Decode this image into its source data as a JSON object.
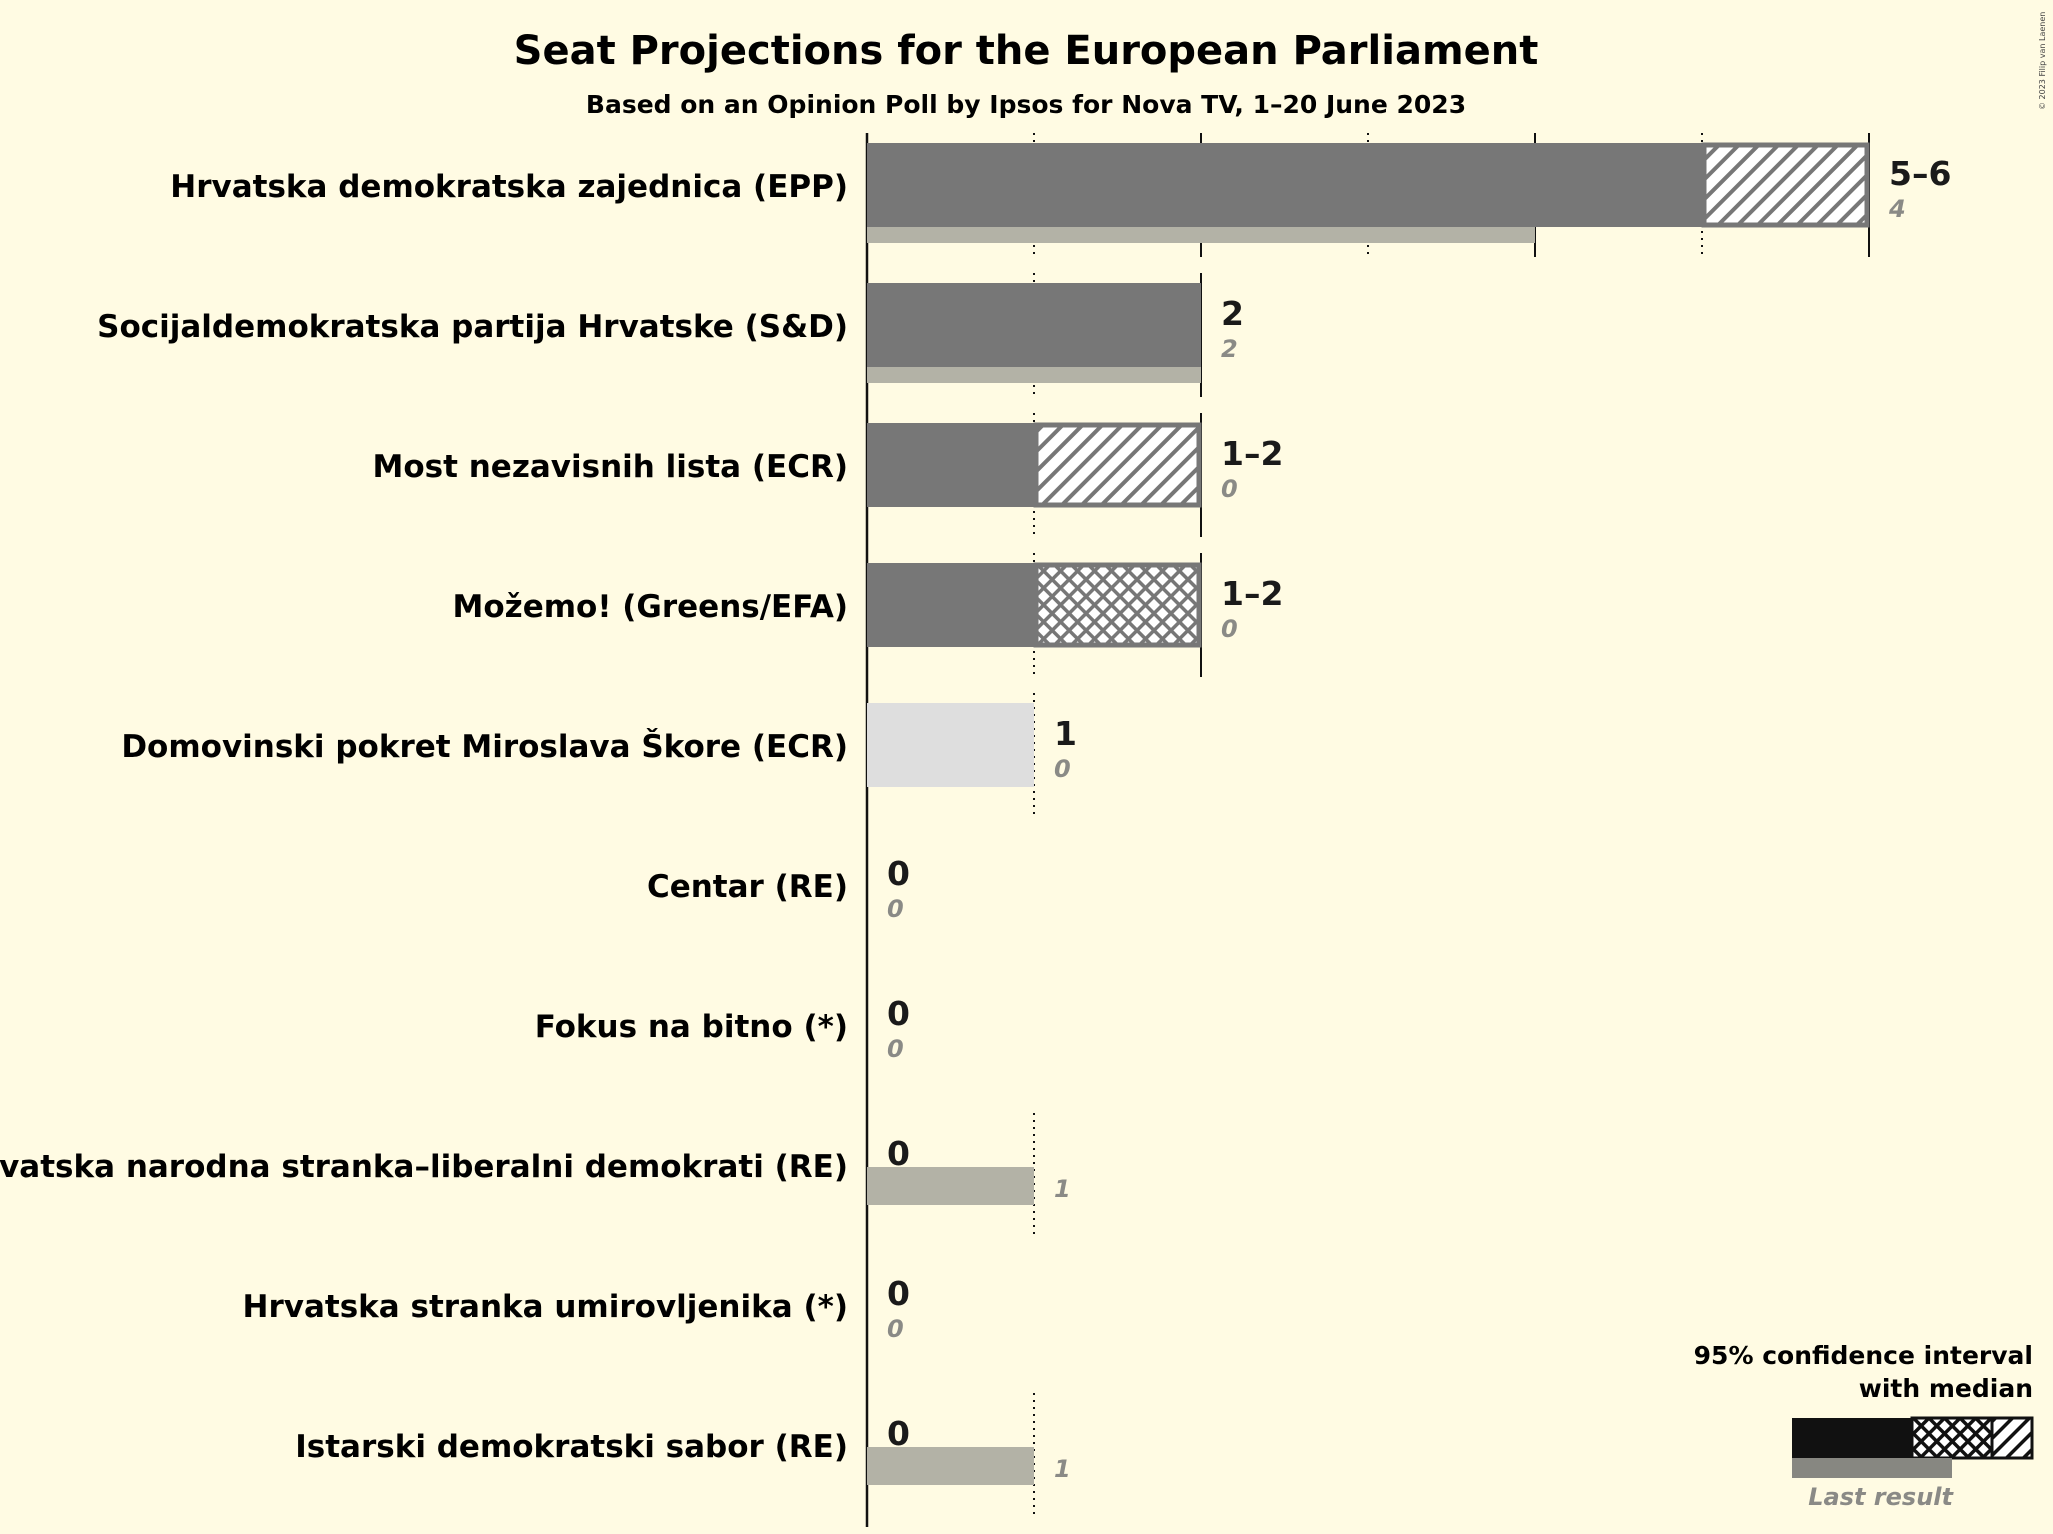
{
  "chart_data": {
    "type": "bar",
    "title": "Seat Projections for the European Parliament",
    "subtitle": "Based on an Opinion Poll by Ipsos for Nova TV, 1–20 June 2023",
    "xlim": [
      0,
      6
    ],
    "gridlines_solid": [
      0,
      2,
      4,
      6
    ],
    "gridlines_dotted": [
      1,
      3,
      5
    ],
    "parties": [
      {
        "name": "Hrvatska demokratska zajednica (EPP)",
        "solid_to": 5,
        "ci_low": 5,
        "ci_high": 6,
        "median": 5,
        "pattern": "hatch",
        "range_label": "5–6",
        "last_result": 4,
        "last_label": "4",
        "color": "#777777"
      },
      {
        "name": "Socijaldemokratska partija Hrvatske (S&D)",
        "solid_to": 2,
        "ci_low": 2,
        "ci_high": 2,
        "median": 2,
        "pattern": "none",
        "range_label": "2",
        "last_result": 2,
        "last_label": "2",
        "color": "#777777"
      },
      {
        "name": "Most nezavisnih lista (ECR)",
        "solid_to": 1,
        "ci_low": 1,
        "ci_high": 2,
        "median": 1,
        "pattern": "hatch",
        "range_label": "1–2",
        "last_result": 0,
        "last_label": "0",
        "color": "#777777"
      },
      {
        "name": "Možemo! (Greens/EFA)",
        "solid_to": 1,
        "ci_low": 1,
        "ci_high": 2,
        "median": 1,
        "pattern": "cross",
        "range_label": "1–2",
        "last_result": 0,
        "last_label": "0",
        "color": "#777777"
      },
      {
        "name": "Domovinski pokret Miroslava Škore (ECR)",
        "solid_to": 1,
        "ci_low": 1,
        "ci_high": 1,
        "median": 1,
        "pattern": "none",
        "range_label": "1",
        "last_result": 0,
        "last_label": "0",
        "color": "#dedede"
      },
      {
        "name": "Centar (RE)",
        "solid_to": 0,
        "ci_low": 0,
        "ci_high": 0,
        "median": 0,
        "pattern": "none",
        "range_label": "0",
        "last_result": 0,
        "last_label": "0",
        "color": "#777777"
      },
      {
        "name": "Fokus na bitno (*)",
        "solid_to": 0,
        "ci_low": 0,
        "ci_high": 0,
        "median": 0,
        "pattern": "none",
        "range_label": "0",
        "last_result": 0,
        "last_label": "0",
        "color": "#777777"
      },
      {
        "name": "Hrvatska narodna stranka–liberalni demokrati (RE)",
        "solid_to": 0,
        "ci_low": 0,
        "ci_high": 0,
        "median": 0,
        "pattern": "none",
        "range_label": "0",
        "last_result": 1,
        "last_label": "1",
        "color": "#777777"
      },
      {
        "name": "Hrvatska stranka umirovljenika (*)",
        "solid_to": 0,
        "ci_low": 0,
        "ci_high": 0,
        "median": 0,
        "pattern": "none",
        "range_label": "0",
        "last_result": 0,
        "last_label": "0",
        "color": "#777777"
      },
      {
        "name": "Istarski demokratski sabor (RE)",
        "solid_to": 0,
        "ci_low": 0,
        "ci_high": 0,
        "median": 0,
        "pattern": "none",
        "range_label": "0",
        "last_result": 1,
        "last_label": "1",
        "color": "#777777"
      }
    ],
    "legend": {
      "title_line1": "95% confidence interval",
      "title_line2": "with median",
      "last_result_label": "Last result",
      "placement": "bottom-right"
    },
    "copyright": "© 2023 Filip van Laenen"
  },
  "colors": {
    "background": "#fffbe3",
    "bar": "#777777",
    "bar_light": "#dedede",
    "last_result": "#b3b2a6",
    "legend_bar": "#111111"
  }
}
